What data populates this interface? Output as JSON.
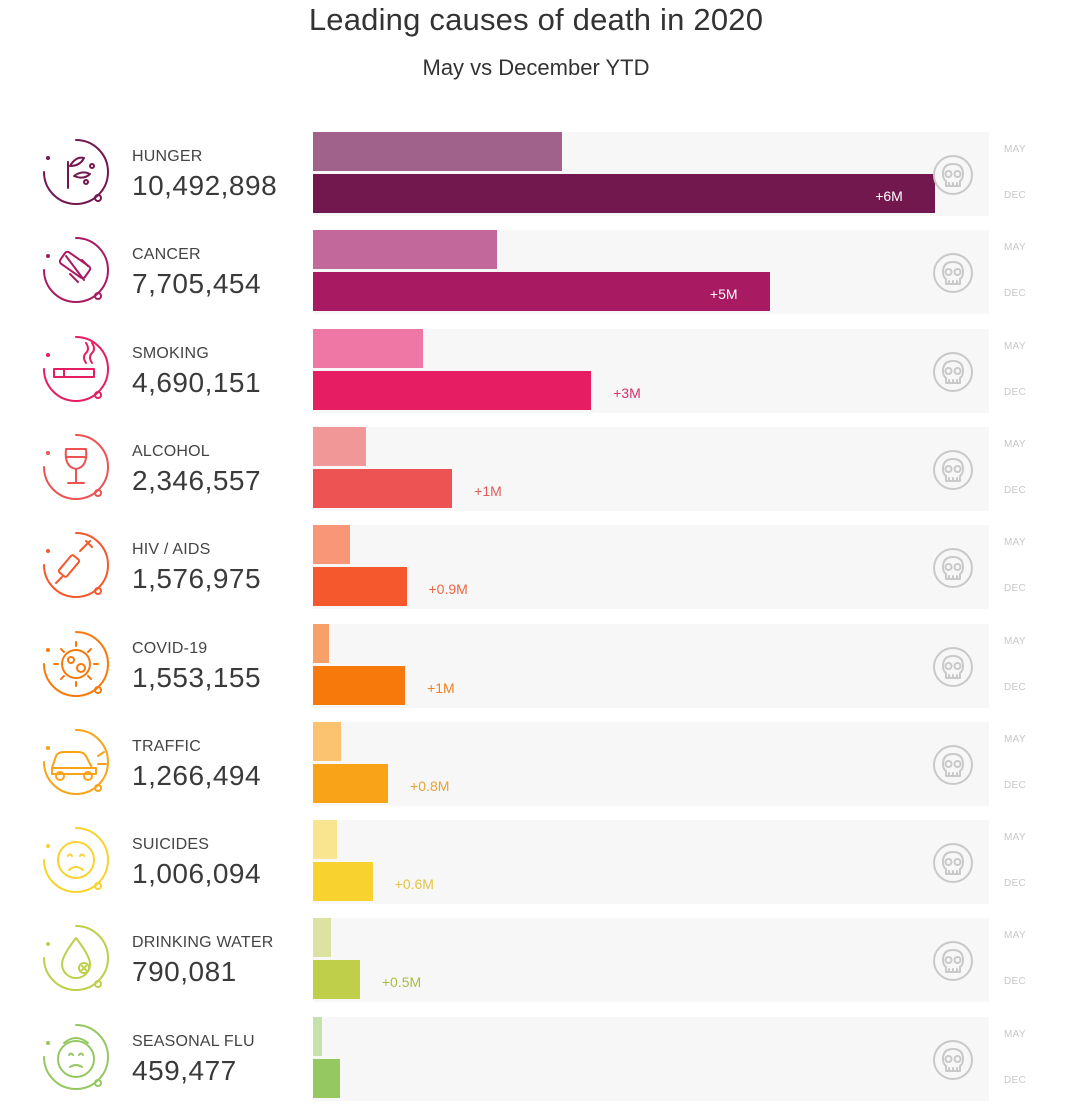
{
  "header": {
    "title": "Leading causes of death in 2020",
    "subtitle": "May vs December YTD"
  },
  "month_labels": {
    "may": "MAY",
    "dec": "DEC"
  },
  "chart_data": {
    "type": "bar",
    "orientation": "horizontal",
    "title": "Leading causes of death in 2020",
    "subtitle": "May vs December YTD",
    "xlim": [
      0,
      11400000
    ],
    "grid": false,
    "categories": [
      "HUNGER",
      "CANCER",
      "SMOKING",
      "ALCOHOL",
      "HIV / AIDS",
      "COVID-19",
      "TRAFFIC",
      "SUICIDES",
      "DRINKING WATER",
      "SEASONAL FLU"
    ],
    "series": [
      {
        "name": "MAY",
        "values": [
          4200000,
          3100000,
          1850000,
          900000,
          620000,
          270000,
          470000,
          400000,
          300000,
          160000
        ]
      },
      {
        "name": "DEC",
        "values": [
          10492898,
          7705454,
          4690151,
          2346557,
          1576975,
          1553155,
          1266494,
          1006094,
          790081,
          459477
        ]
      }
    ],
    "count_labels": [
      "10,492,898",
      "7,705,454",
      "4,690,151",
      "2,346,557",
      "1,576,975",
      "1,553,155",
      "1,266,494",
      "1,006,094",
      "790,081",
      "459,477"
    ],
    "delta_labels": [
      "+6M",
      "+5M",
      "+3M",
      "+1M",
      "+0.9M",
      "+1M",
      "+0.8M",
      "+0.6M",
      "+0.5M",
      ""
    ],
    "colors": [
      {
        "may": "#a0628a",
        "dec": "#73184f",
        "text": "#73184f"
      },
      {
        "may": "#c2689a",
        "dec": "#a81b62",
        "text": "#a81b62"
      },
      {
        "may": "#ee77a6",
        "dec": "#e61d62",
        "text": "#d3306c"
      },
      {
        "may": "#f19797",
        "dec": "#ec5352",
        "text": "#e35a5a"
      },
      {
        "may": "#f99677",
        "dec": "#f5582d",
        "text": "#ee6644"
      },
      {
        "may": "#f8a06a",
        "dec": "#f7790b",
        "text": "#f08020"
      },
      {
        "may": "#fbc370",
        "dec": "#f9a318",
        "text": "#e9a236"
      },
      {
        "may": "#f9e48f",
        "dec": "#f8d22e",
        "text": "#e2c545"
      },
      {
        "may": "#dce2a2",
        "dec": "#bfcf4a",
        "text": "#a9bb43"
      },
      {
        "may": "#c6e2ac",
        "dec": "#95c861",
        "text": "#8ab85e"
      }
    ],
    "icons": [
      "wheat-icon",
      "pills-icon",
      "cigarette-icon",
      "wine-glass-icon",
      "syringe-icon",
      "virus-icon",
      "car-crash-icon",
      "sad-face-icon",
      "water-drop-icon",
      "flu-face-icon"
    ]
  }
}
